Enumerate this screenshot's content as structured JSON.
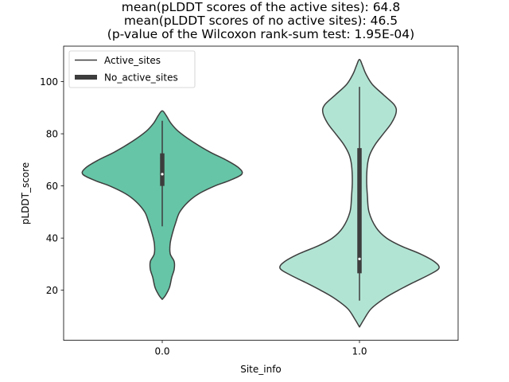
{
  "chart_data": {
    "type": "violin",
    "title_lines": [
      "mean(pLDDT scores of the active sites): 64.8",
      "mean(pLDDT scores of no active sites): 46.5",
      "(p-value of the Wilcoxon rank-sum test: 1.95E-04)"
    ],
    "xlabel": "Site_info",
    "ylabel": "pLDDT_score",
    "ylim": [
      0.8,
      113.6
    ],
    "yticks": [
      20,
      40,
      60,
      80,
      100
    ],
    "categories": [
      "0.0",
      "1.0"
    ],
    "legend": {
      "placement": "top-left",
      "entries": [
        {
          "label": "Active_sites",
          "style": "thin-line"
        },
        {
          "label": "No_active_sites",
          "style": "thick-line"
        }
      ]
    },
    "series": [
      {
        "name": "Active_sites",
        "category": "0.0",
        "color": "#66c5a6",
        "mean": 64.8,
        "median": 64.5,
        "q1": 60.0,
        "q3": 72.5,
        "whisker_low": 44.5,
        "whisker_high": 85.0,
        "density": [
          [
            16.5,
            0.0
          ],
          [
            18,
            0.04
          ],
          [
            21,
            0.09
          ],
          [
            25,
            0.12
          ],
          [
            28,
            0.15
          ],
          [
            31,
            0.15
          ],
          [
            34,
            0.1
          ],
          [
            38,
            0.1
          ],
          [
            42,
            0.13
          ],
          [
            46,
            0.17
          ],
          [
            50,
            0.22
          ],
          [
            54,
            0.33
          ],
          [
            57,
            0.46
          ],
          [
            60,
            0.66
          ],
          [
            62,
            0.84
          ],
          [
            64.5,
            1.0
          ],
          [
            67,
            0.96
          ],
          [
            70,
            0.8
          ],
          [
            73,
            0.6
          ],
          [
            77,
            0.38
          ],
          [
            81,
            0.2
          ],
          [
            84,
            0.11
          ],
          [
            87,
            0.05
          ],
          [
            88.8,
            0.0
          ]
        ]
      },
      {
        "name": "No_active_sites",
        "category": "1.0",
        "color": "#b2e4d4",
        "mean": 46.5,
        "median": 32.0,
        "q1": 26.5,
        "q3": 74.5,
        "whisker_low": 16.0,
        "whisker_high": 98.0,
        "density": [
          [
            5.9,
            0.0
          ],
          [
            9,
            0.06
          ],
          [
            13,
            0.15
          ],
          [
            17,
            0.32
          ],
          [
            20,
            0.49
          ],
          [
            23,
            0.68
          ],
          [
            26,
            0.88
          ],
          [
            28.5,
            1.0
          ],
          [
            31,
            0.94
          ],
          [
            34,
            0.76
          ],
          [
            37,
            0.52
          ],
          [
            40,
            0.34
          ],
          [
            44,
            0.21
          ],
          [
            50,
            0.12
          ],
          [
            56,
            0.1
          ],
          [
            62,
            0.09
          ],
          [
            68,
            0.1
          ],
          [
            72,
            0.13
          ],
          [
            76,
            0.2
          ],
          [
            80,
            0.3
          ],
          [
            84,
            0.4
          ],
          [
            88,
            0.46
          ],
          [
            91,
            0.44
          ],
          [
            95,
            0.3
          ],
          [
            99,
            0.16
          ],
          [
            103,
            0.08
          ],
          [
            106,
            0.04
          ],
          [
            108.5,
            0.0
          ]
        ]
      }
    ]
  }
}
